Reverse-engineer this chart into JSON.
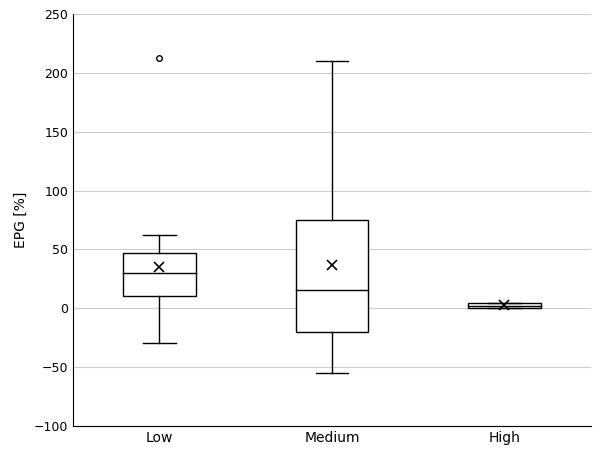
{
  "categories": [
    "Low",
    "Medium",
    "High"
  ],
  "boxes": [
    {
      "q1": 10,
      "median": 30,
      "q3": 47,
      "whisker_low": -30,
      "whisker_high": 62,
      "mean": 35,
      "outliers": [
        213
      ]
    },
    {
      "q1": -20,
      "median": 15,
      "q3": 75,
      "whisker_low": -55,
      "whisker_high": 210,
      "mean": 37,
      "outliers": []
    },
    {
      "q1": 0,
      "median": 2,
      "q3": 4,
      "whisker_low": 0,
      "whisker_high": 4,
      "mean": 3,
      "outliers": []
    }
  ],
  "ylabel": "EPG [%]",
  "ylim": [
    -100,
    250
  ],
  "yticks": [
    -100,
    -50,
    0,
    50,
    100,
    150,
    200,
    250
  ],
  "background_color": "#ffffff",
  "box_color": "#ffffff",
  "line_color": "#000000",
  "grid_color": "#cccccc",
  "box_width": 0.42,
  "figsize": [
    6.09,
    4.73
  ],
  "dpi": 100
}
